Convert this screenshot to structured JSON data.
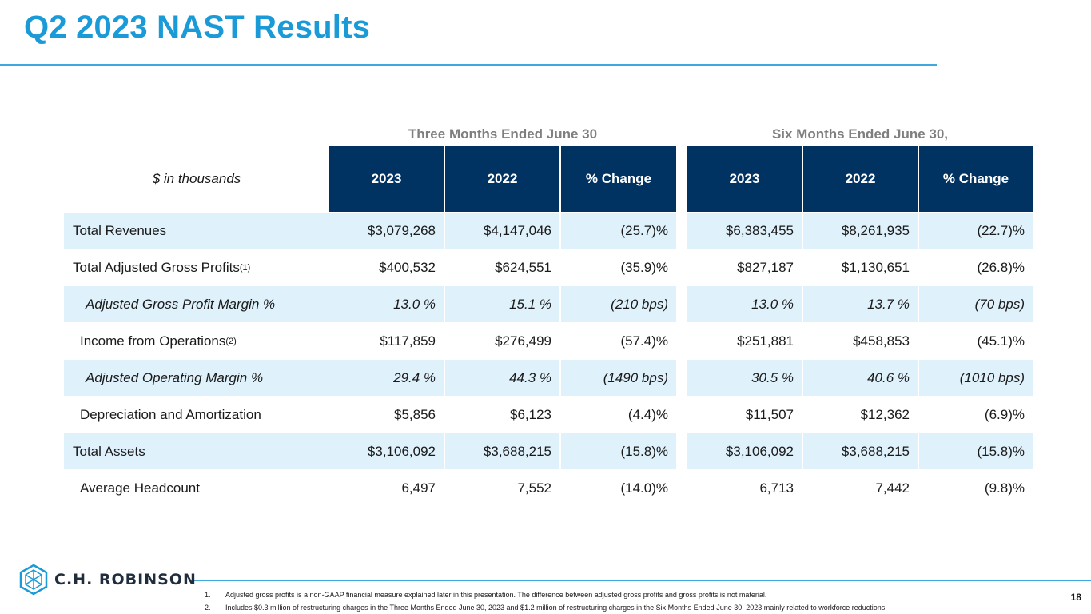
{
  "title": "Q2 2023 NAST Results",
  "periods": {
    "three": "Three Months Ended June 30",
    "six": "Six Months Ended June 30,"
  },
  "header": {
    "label": "$ in thousands",
    "cols": [
      "2023",
      "2022",
      "% Change",
      "2023",
      "2022",
      "% Change"
    ]
  },
  "rows": [
    {
      "label": "Total Revenues",
      "sup": "",
      "values": [
        "$3,079,268",
        "$4,147,046",
        "(25.7)%",
        "$6,383,455",
        "$8,261,935",
        "(22.7)%"
      ]
    },
    {
      "label": "Total Adjusted Gross Profits",
      "sup": "(1)",
      "values": [
        "$400,532",
        "$624,551",
        "(35.9)%",
        "$827,187",
        "$1,130,651",
        "(26.8)%"
      ]
    },
    {
      "label": "Adjusted Gross Profit Margin %",
      "sup": "",
      "values": [
        "13.0 %",
        "15.1 %",
        "(210 bps)",
        "13.0 %",
        "13.7 %",
        "(70 bps)"
      ]
    },
    {
      "label": "Income from Operations",
      "sup": "(2)",
      "values": [
        "$117,859",
        "$276,499",
        "(57.4)%",
        "$251,881",
        "$458,853",
        "(45.1)%"
      ]
    },
    {
      "label": "Adjusted Operating Margin %",
      "sup": "",
      "values": [
        "29.4 %",
        "44.3 %",
        "(1490 bps)",
        "30.5 %",
        "40.6 %",
        "(1010 bps)"
      ]
    },
    {
      "label": "Depreciation and Amortization",
      "sup": "",
      "values": [
        "$5,856",
        "$6,123",
        "(4.4)%",
        "$11,507",
        "$12,362",
        "(6.9)%"
      ]
    },
    {
      "label": "Total Assets",
      "sup": "",
      "values": [
        "$3,106,092",
        "$3,688,215",
        "(15.8)%",
        "$3,106,092",
        "$3,688,215",
        "(15.8)%"
      ]
    },
    {
      "label": "Average Headcount",
      "sup": "",
      "values": [
        "6,497",
        "7,552",
        "(14.0)%",
        "6,713",
        "7,442",
        "(9.8)%"
      ]
    }
  ],
  "logo": {
    "text": "C.H. ROBINSON",
    "icon": "cube-logo-icon",
    "color": "#1a9ad6"
  },
  "footnotes": [
    {
      "num": "1.",
      "text": "Adjusted gross profits is a non-GAAP financial measure explained later in this presentation. The difference between adjusted gross profits and gross profits is not material."
    },
    {
      "num": "2.",
      "text": "Includes $0.3 million of restructuring charges in the Three Months Ended June 30, 2023 and $1.2 million of restructuring charges in the Six Months Ended June 30, 2023 mainly related to workforce reductions."
    }
  ],
  "page_number": "18",
  "colors": {
    "accent": "#1a9ad6",
    "header_bg": "#003262",
    "row_shade": "#dff1fb"
  }
}
